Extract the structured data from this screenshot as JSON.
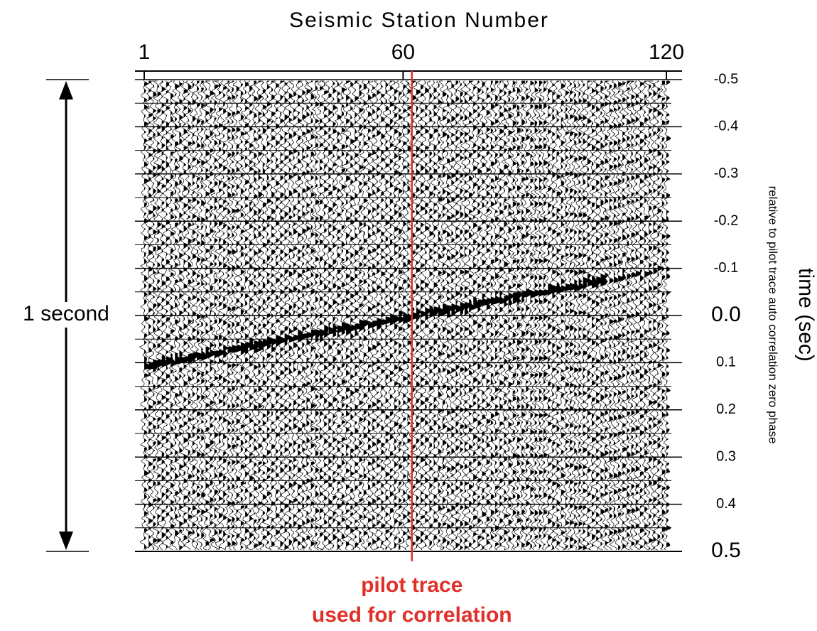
{
  "chart_data": {
    "type": "wiggle",
    "title": "Seismic Station Number",
    "xlim": [
      1,
      120
    ],
    "xticks": [
      1,
      60,
      120
    ],
    "ylim": [
      -0.5,
      0.5
    ],
    "yticks": [
      -0.5,
      -0.4,
      -0.3,
      -0.2,
      -0.1,
      {
        "value": 0,
        "label": "0.0"
      },
      0.1,
      0.2,
      0.3,
      0.4,
      0.5
    ],
    "y_title": "time (sec)",
    "y_subtitle": "relative to pilot trace auto correlation zero phase",
    "span_label": "1 second",
    "pilot_station": 62,
    "pilot_color": "#e0302a",
    "pilot_labels": [
      "pilot trace",
      "used for correlation"
    ]
  }
}
